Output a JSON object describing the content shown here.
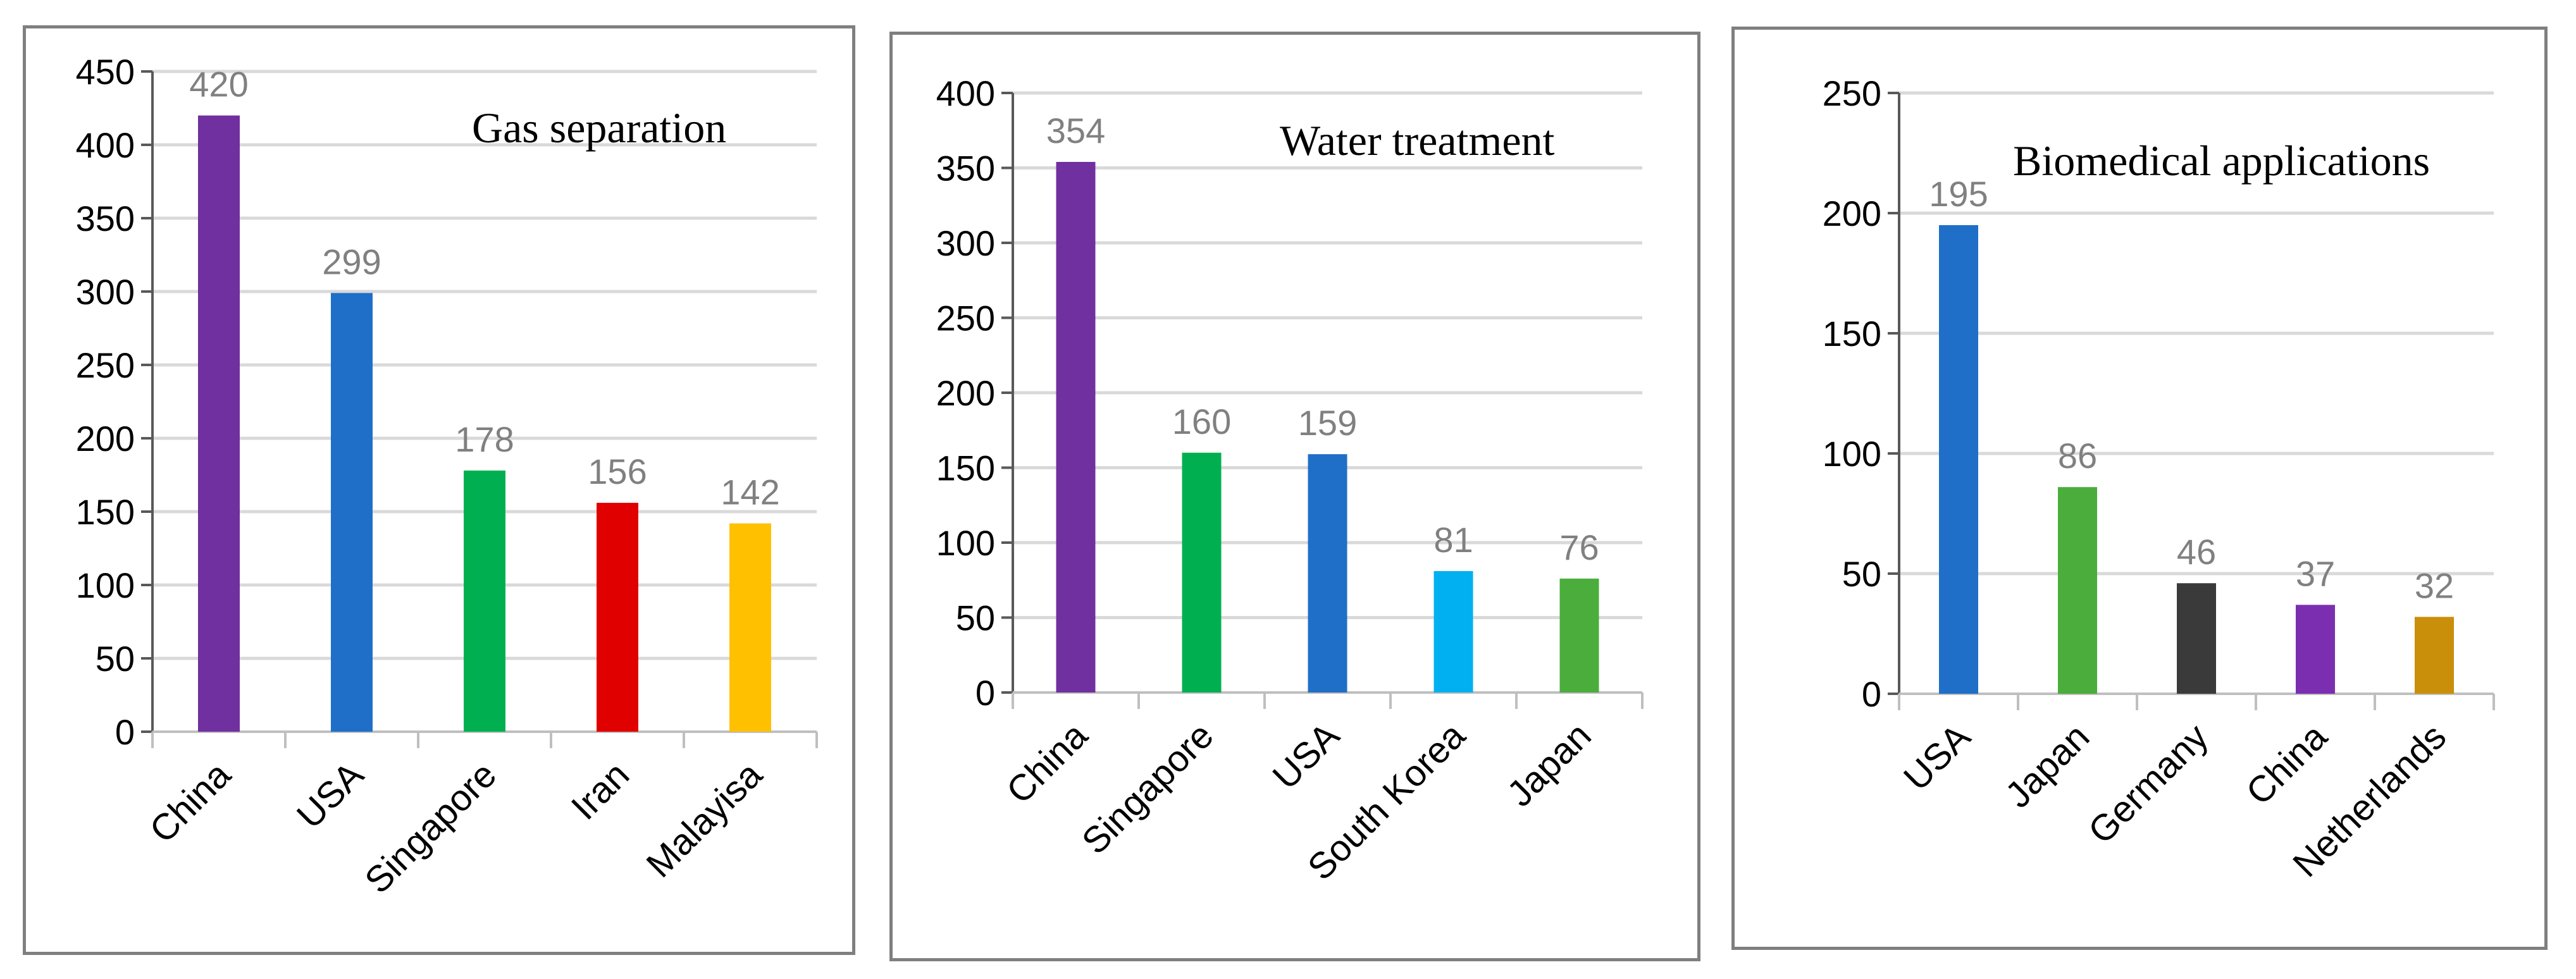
{
  "chart_data": [
    {
      "type": "bar",
      "title": "Gas separation",
      "categories": [
        "China",
        "USA",
        "Singapore",
        "Iran",
        "Malayisa"
      ],
      "values": [
        420,
        299,
        178,
        156,
        142
      ],
      "data_labels": [
        "420",
        "299",
        "178",
        "156",
        "142"
      ],
      "colors": [
        "#7030a0",
        "#1f6fc8",
        "#00b050",
        "#e00000",
        "#ffc000"
      ],
      "ylim": [
        0,
        450
      ],
      "ytick_step": 50,
      "yticks": [
        "0",
        "50",
        "100",
        "150",
        "200",
        "250",
        "300",
        "350",
        "400",
        "450"
      ],
      "xlabel": "",
      "ylabel": "",
      "grid": true
    },
    {
      "type": "bar",
      "title": "Water treatment",
      "categories": [
        "China",
        "Singapore",
        "USA",
        "South Korea",
        "Japan"
      ],
      "values": [
        354,
        160,
        159,
        81,
        76
      ],
      "data_labels": [
        "354",
        "160",
        "159",
        "81",
        "76"
      ],
      "colors": [
        "#7030a0",
        "#00b050",
        "#1f6fc8",
        "#00b0f0",
        "#4aad3c"
      ],
      "ylim": [
        0,
        400
      ],
      "ytick_step": 50,
      "yticks": [
        "0",
        "50",
        "100",
        "150",
        "200",
        "250",
        "300",
        "350",
        "400"
      ],
      "xlabel": "",
      "ylabel": "",
      "grid": true
    },
    {
      "type": "bar",
      "title": "Biomedical applications",
      "categories": [
        "USA",
        "Japan",
        "Germany",
        "China",
        "Netherlands"
      ],
      "values": [
        195,
        86,
        46,
        37,
        32
      ],
      "data_labels": [
        "195",
        "86",
        "46",
        "37",
        "32"
      ],
      "colors": [
        "#1f6fc8",
        "#4aad3c",
        "#3a3a3a",
        "#7b2fb0",
        "#c98e0a"
      ],
      "ylim": [
        0,
        250
      ],
      "ytick_step": 50,
      "yticks": [
        "0",
        "50",
        "100",
        "150",
        "200",
        "250"
      ],
      "xlabel": "",
      "ylabel": "",
      "grid": true
    }
  ]
}
